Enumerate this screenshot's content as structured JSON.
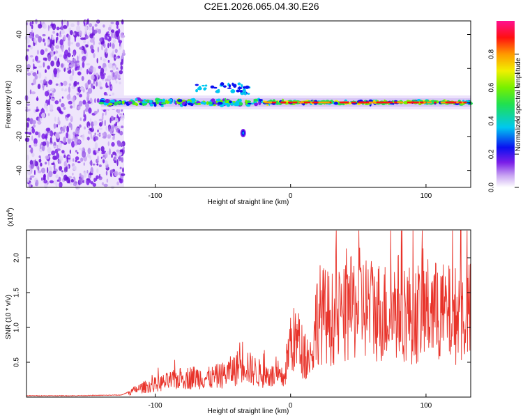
{
  "title": "C2E1.2026.065.04.30.E26",
  "colors": {
    "snr_line": "#e8332a",
    "noise_fill": "#a070ee",
    "axes": "#000000"
  },
  "chart_data": [
    {
      "type": "heatmap",
      "xlabel": "Height of straight line (km)",
      "ylabel": "Frequency (Hz)",
      "xlim": [
        -195,
        133
      ],
      "ylim": [
        -50,
        48
      ],
      "xticks": [
        -100,
        0,
        100
      ],
      "yticks": [
        -40,
        -20,
        0,
        20,
        40
      ],
      "colorbar": {
        "label": "Normalized spectral amplitude",
        "range": [
          0,
          1
        ],
        "ticks": [
          0.0,
          0.2,
          0.4,
          0.6,
          0.8
        ],
        "colormap": "rainbow (white-violet-blue-cyan-green-yellow-red-magenta)"
      },
      "features": {
        "noise_region_x": [
          -195,
          -123
        ],
        "carrier_frequency_hz": 0,
        "carrier_x": [
          -140,
          133
        ],
        "side_blob": {
          "x": -35,
          "y": -18
        }
      }
    },
    {
      "type": "line",
      "xlabel": "Height of straight line (km)",
      "ylabel": "SNR (10 * v/v)",
      "yscale_label": "(x10",
      "yscale_exp": "4",
      "xlim": [
        -195,
        133
      ],
      "ylim": [
        0,
        2.4
      ],
      "xticks": [
        -100,
        0,
        100
      ],
      "yticks": [
        0.5,
        1.0,
        1.5,
        2.0
      ],
      "series": [
        {
          "x": [
            -195,
            -160,
            -125,
            -110,
            -100,
            -90,
            -80,
            -70,
            -60,
            -50,
            -40,
            -35,
            -30,
            -25,
            -20,
            -15,
            -10,
            -5,
            0,
            5,
            10,
            15,
            20,
            25,
            30,
            40,
            50,
            60,
            70,
            80,
            90,
            100,
            110,
            120,
            133
          ],
          "y": [
            0.02,
            0.02,
            0.03,
            0.15,
            0.2,
            0.25,
            0.3,
            0.32,
            0.3,
            0.35,
            0.45,
            0.6,
            0.45,
            0.4,
            0.35,
            0.35,
            0.3,
            0.3,
            0.9,
            0.9,
            0.7,
            0.6,
            1.35,
            1.3,
            1.25,
            1.3,
            1.5,
            1.4,
            1.35,
            1.45,
            1.3,
            1.4,
            1.35,
            1.3,
            1.35
          ]
        }
      ]
    }
  ]
}
